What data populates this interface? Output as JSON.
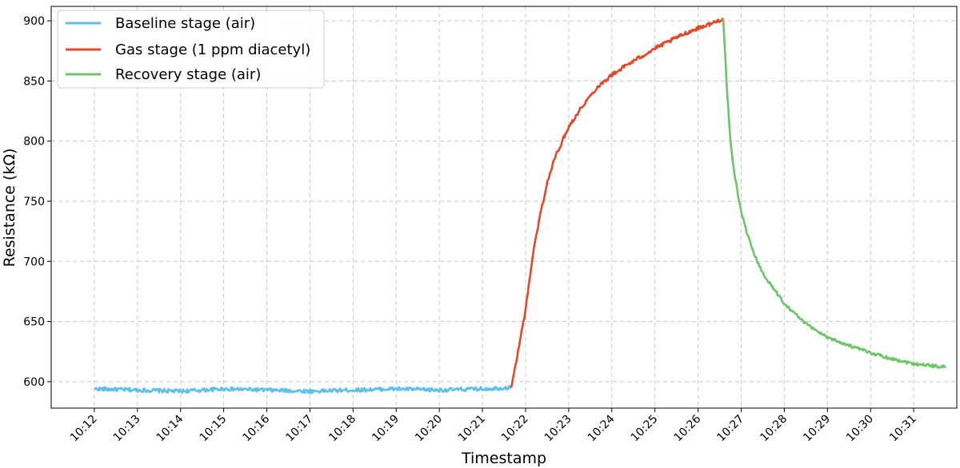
{
  "chart_data": {
    "type": "line",
    "xlabel": "Timestamp",
    "ylabel": "Resistance (kΩ)",
    "x_ticks": [
      "10:12",
      "10:13",
      "10:14",
      "10:15",
      "10:16",
      "10:17",
      "10:18",
      "10:19",
      "10:20",
      "10:21",
      "10:22",
      "10:23",
      "10:24",
      "10:25",
      "10:26",
      "10:27",
      "10:28",
      "10:29",
      "10:30",
      "10:31"
    ],
    "xlim": [
      "10:11:00",
      "10:32:00"
    ],
    "ylim": [
      578,
      912
    ],
    "y_ticks": [
      600,
      650,
      700,
      750,
      800,
      850,
      900
    ],
    "grid": true,
    "legend_position": "top-left",
    "series": [
      {
        "name": "Baseline stage (air)",
        "color": "#5bc0ee",
        "x": [
          "10:12:00",
          "10:13:00",
          "10:14:00",
          "10:15:00",
          "10:16:00",
          "10:17:00",
          "10:18:00",
          "10:19:00",
          "10:20:00",
          "10:21:00",
          "10:21:40"
        ],
        "y": [
          594,
          593,
          592,
          594,
          593,
          592,
          593,
          594,
          593,
          594,
          595
        ]
      },
      {
        "name": "Gas stage (1 ppm diacetyl)",
        "color": "#e0492a",
        "x": [
          "10:21:40",
          "10:21:45",
          "10:22:00",
          "10:22:10",
          "10:22:20",
          "10:22:30",
          "10:22:40",
          "10:23:00",
          "10:23:20",
          "10:23:40",
          "10:24:00",
          "10:24:20",
          "10:24:40",
          "10:25:00",
          "10:25:20",
          "10:25:40",
          "10:26:00",
          "10:26:20",
          "10:26:35"
        ],
        "y": [
          595,
          610,
          660,
          705,
          738,
          765,
          785,
          812,
          830,
          845,
          855,
          863,
          870,
          877,
          883,
          889,
          894,
          898,
          902
        ]
      },
      {
        "name": "Recovery stage (air)",
        "color": "#6cc56b",
        "x": [
          "10:26:35",
          "10:26:40",
          "10:26:45",
          "10:26:50",
          "10:27:00",
          "10:27:15",
          "10:27:30",
          "10:28:00",
          "10:28:30",
          "10:29:00",
          "10:29:30",
          "10:30:00",
          "10:30:30",
          "10:31:00",
          "10:31:45"
        ],
        "y": [
          902,
          845,
          800,
          775,
          740,
          710,
          690,
          665,
          648,
          637,
          630,
          624,
          619,
          615,
          612
        ]
      }
    ]
  }
}
